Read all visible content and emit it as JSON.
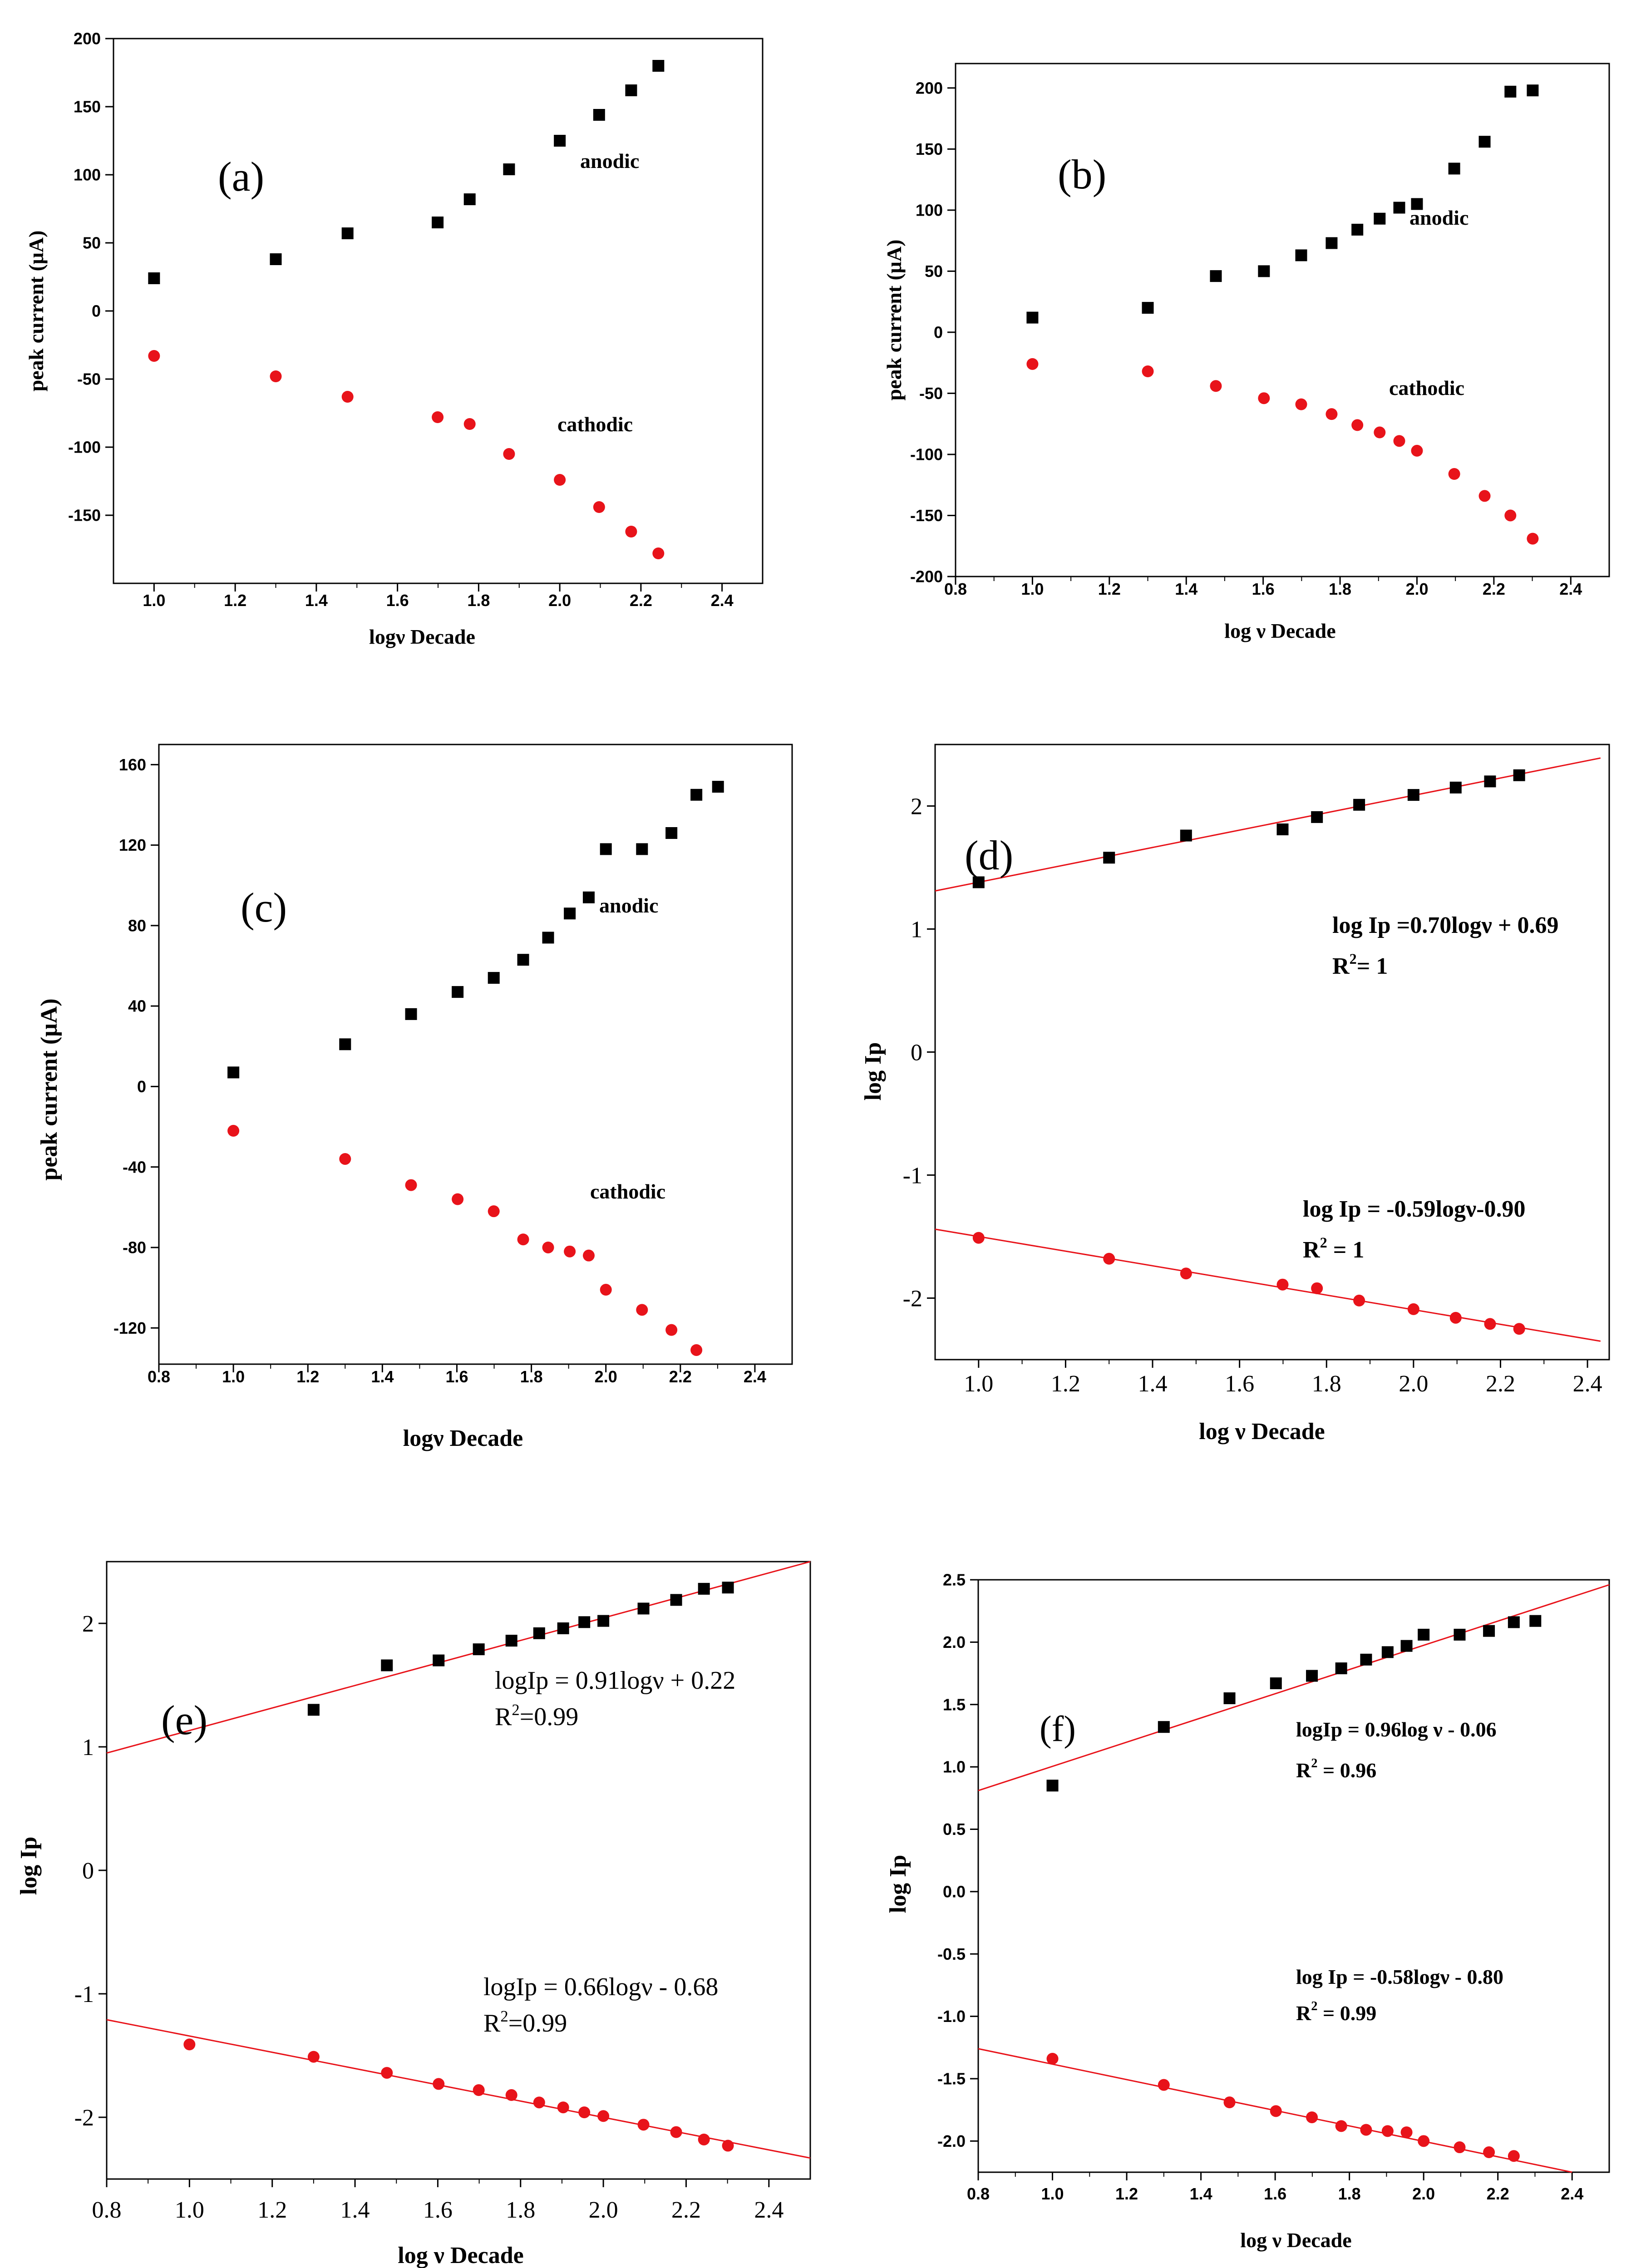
{
  "chart_data": [
    {
      "id": "a",
      "type": "scatter",
      "label": "(a)",
      "xlabel": "logν Decade",
      "ylabel": "peak current (μA)",
      "xlim": [
        0.9,
        2.5
      ],
      "ylim": [
        -200,
        200
      ],
      "xticks": [
        "1.0",
        "1.2",
        "1.4",
        "1.6",
        "1.8",
        "2.0",
        "2.2",
        "2.4"
      ],
      "yticks": [
        "200",
        "150",
        "100",
        "50",
        "0",
        "-50",
        "-100",
        "-150"
      ],
      "series": [
        {
          "name": "anodic",
          "label": "anodic",
          "color": "#000000",
          "marker": "square",
          "x": [
            1.0,
            1.3,
            1.477,
            1.699,
            1.778,
            1.875,
            2.0,
            2.097,
            2.176,
            2.243
          ],
          "y": [
            24,
            38,
            57,
            65,
            82,
            104,
            125,
            144,
            162,
            180
          ]
        },
        {
          "name": "cathodic",
          "label": "cathodic",
          "color": "#e8131a",
          "marker": "circle",
          "x": [
            1.0,
            1.3,
            1.477,
            1.699,
            1.778,
            1.875,
            2.0,
            2.097,
            2.176,
            2.243
          ],
          "y": [
            -33,
            -48,
            -63,
            -78,
            -83,
            -105,
            -124,
            -144,
            -162,
            -178
          ]
        }
      ]
    },
    {
      "id": "b",
      "type": "scatter",
      "label": "(b)",
      "xlabel": "log ν Decade",
      "ylabel": "peak current (μA)",
      "xlim": [
        0.8,
        2.5
      ],
      "ylim": [
        -200,
        220
      ],
      "xticks": [
        "0.8",
        "1.0",
        "1.2",
        "1.4",
        "1.6",
        "1.8",
        "2.0",
        "2.2",
        "2.4"
      ],
      "yticks": [
        "200",
        "150",
        "100",
        "50",
        "0",
        "-50",
        "-100",
        "-150",
        "-200"
      ],
      "series": [
        {
          "name": "anodic",
          "label": "anodic",
          "color": "#000000",
          "marker": "square",
          "x": [
            1.0,
            1.3,
            1.477,
            1.602,
            1.699,
            1.778,
            1.845,
            1.903,
            1.954,
            2.0,
            2.097,
            2.176,
            2.243,
            2.301
          ],
          "y": [
            12,
            20,
            46,
            50,
            63,
            73,
            84,
            93,
            102,
            105,
            134,
            156,
            197,
            198
          ]
        },
        {
          "name": "cathodic",
          "label": "cathodic",
          "color": "#e8131a",
          "marker": "circle",
          "x": [
            1.0,
            1.3,
            1.477,
            1.602,
            1.699,
            1.778,
            1.845,
            1.903,
            1.954,
            2.0,
            2.097,
            2.176,
            2.243,
            2.301
          ],
          "y": [
            -26,
            -32,
            -44,
            -54,
            -59,
            -67,
            -76,
            -82,
            -89,
            -97,
            -116,
            -134,
            -150,
            -169
          ]
        }
      ]
    },
    {
      "id": "c",
      "type": "scatter",
      "label": "(c)",
      "xlabel": "logν Decade",
      "ylabel": "peak current (μA)",
      "xlim": [
        0.8,
        2.5
      ],
      "ylim": [
        -138,
        170
      ],
      "xticks": [
        "0.8",
        "1.0",
        "1.2",
        "1.4",
        "1.6",
        "1.8",
        "2.0",
        "2.2",
        "2.4"
      ],
      "yticks": [
        "160",
        "120",
        "80",
        "40",
        "0",
        "-40",
        "-80",
        "-120"
      ],
      "series": [
        {
          "name": "anodic",
          "label": "anodic",
          "color": "#000000",
          "marker": "square",
          "x": [
            1.0,
            1.3,
            1.477,
            1.602,
            1.699,
            1.778,
            1.845,
            1.903,
            1.954,
            2.0,
            2.097,
            2.176,
            2.243,
            2.301
          ],
          "y": [
            7,
            21,
            36,
            47,
            54,
            63,
            74,
            86,
            94,
            118,
            118,
            126,
            145,
            149
          ]
        },
        {
          "name": "cathodic",
          "label": "cathodic",
          "color": "#e8131a",
          "marker": "circle",
          "x": [
            1.0,
            1.3,
            1.477,
            1.602,
            1.699,
            1.778,
            1.845,
            1.903,
            1.954,
            2.0,
            2.097,
            2.176,
            2.243
          ],
          "y": [
            -22,
            -36,
            -49,
            -56,
            -62,
            -76,
            -80,
            -82,
            -84,
            -101,
            -111,
            -121,
            -131
          ]
        }
      ]
    },
    {
      "id": "d",
      "type": "scatter",
      "label": "(d)",
      "xlabel": "log ν Decade",
      "ylabel": "log Ip",
      "xlim": [
        0.9,
        2.45
      ],
      "ylim": [
        -2.5,
        2.5
      ],
      "xticks": [
        "1.0",
        "1.2",
        "1.4",
        "1.6",
        "1.8",
        "2.0",
        "2.2",
        "2.4"
      ],
      "yticks": [
        "2",
        "1",
        "0",
        "-1",
        "-2"
      ],
      "eq1": "log Ip =0.70logν + 0.69",
      "r2_1": "R²= 1",
      "eq2": "log Ip = -0.59logν-0.90",
      "r2_2": "R² = 1",
      "series": [
        {
          "name": "anodic",
          "color": "#000000",
          "marker": "square",
          "x": [
            1.0,
            1.3,
            1.477,
            1.699,
            1.778,
            1.875,
            2.0,
            2.097,
            2.176,
            2.243
          ],
          "y": [
            1.38,
            1.58,
            1.76,
            1.81,
            1.91,
            2.01,
            2.09,
            2.15,
            2.2,
            2.25
          ]
        },
        {
          "name": "cathodic",
          "color": "#e8131a",
          "marker": "circle",
          "x": [
            1.0,
            1.3,
            1.477,
            1.699,
            1.778,
            1.875,
            2.0,
            2.097,
            2.176,
            2.243
          ],
          "y": [
            -1.51,
            -1.68,
            -1.8,
            -1.89,
            -1.92,
            -2.02,
            -2.09,
            -2.16,
            -2.21,
            -2.25
          ]
        }
      ],
      "fits": [
        {
          "color": "#e8131a",
          "x": [
            0.9,
            2.43
          ],
          "y": [
            1.31,
            2.39
          ]
        },
        {
          "color": "#e8131a",
          "x": [
            0.9,
            2.43
          ],
          "y": [
            -1.44,
            -2.35
          ]
        }
      ]
    },
    {
      "id": "e",
      "type": "scatter",
      "label": "(e)",
      "xlabel": "log ν Decade",
      "ylabel": "log Ip",
      "xlim": [
        0.8,
        2.5
      ],
      "ylim": [
        -2.5,
        2.5
      ],
      "xticks": [
        "0.8",
        "1.0",
        "1.2",
        "1.4",
        "1.6",
        "1.8",
        "2.0",
        "2.2",
        "2.4"
      ],
      "yticks": [
        "2",
        "1",
        "0",
        "-1",
        "-2"
      ],
      "eq1": "logIp = 0.91logν + 0.22",
      "r2_1": "R²=0.99",
      "eq2": "logIp = 0.66logν - 0.68",
      "r2_2": "R²=0.99",
      "series": [
        {
          "name": "anodic",
          "color": "#000000",
          "marker": "square",
          "x": [
            1.3,
            1.477,
            1.602,
            1.699,
            1.778,
            1.845,
            1.903,
            1.954,
            2.0,
            2.097,
            2.176,
            2.243,
            2.301
          ],
          "y": [
            1.3,
            1.66,
            1.7,
            1.79,
            1.86,
            1.92,
            1.96,
            2.01,
            2.02,
            2.12,
            2.19,
            2.28,
            2.29
          ]
        },
        {
          "name": "cathodic",
          "color": "#e8131a",
          "marker": "circle",
          "x": [
            1.0,
            1.3,
            1.477,
            1.602,
            1.699,
            1.778,
            1.845,
            1.903,
            1.954,
            2.0,
            2.097,
            2.176,
            2.243,
            2.301
          ],
          "y": [
            -1.41,
            -1.51,
            -1.64,
            -1.73,
            -1.78,
            -1.82,
            -1.88,
            -1.92,
            -1.96,
            -1.99,
            -2.06,
            -2.12,
            -2.18,
            -2.23
          ]
        }
      ],
      "fits": [
        {
          "color": "#e8131a",
          "x": [
            0.8,
            2.5
          ],
          "y": [
            0.95,
            2.5
          ]
        },
        {
          "color": "#e8131a",
          "x": [
            0.8,
            2.5
          ],
          "y": [
            -1.21,
            -2.33
          ]
        }
      ]
    },
    {
      "id": "f",
      "type": "scatter",
      "label": "(f)",
      "xlabel": "log ν Decade",
      "ylabel": "log Ip",
      "xlim": [
        0.8,
        2.5
      ],
      "ylim": [
        -2.25,
        2.5
      ],
      "xticks": [
        "0.8",
        "1.0",
        "1.2",
        "1.4",
        "1.6",
        "1.8",
        "2.0",
        "2.2",
        "2.4"
      ],
      "yticks": [
        "2.5",
        "2.0",
        "1.5",
        "1.0",
        "0.5",
        "0.0",
        "-0.5",
        "-1.0",
        "-1.5",
        "-2.0"
      ],
      "eq1": "logIp = 0.96log ν - 0.06",
      "r2_1": "R² = 0.96",
      "eq2": "log Ip = -0.58logν - 0.80",
      "r2_2": "R² = 0.99",
      "series": [
        {
          "name": "anodic",
          "color": "#000000",
          "marker": "square",
          "x": [
            1.0,
            1.3,
            1.477,
            1.602,
            1.699,
            1.778,
            1.845,
            1.903,
            1.954,
            2.0,
            2.097,
            2.176,
            2.243,
            2.301
          ],
          "y": [
            0.85,
            1.32,
            1.55,
            1.67,
            1.73,
            1.79,
            1.86,
            1.92,
            1.97,
            2.06,
            2.06,
            2.09,
            2.16,
            2.17
          ]
        },
        {
          "name": "cathodic",
          "color": "#e8131a",
          "marker": "circle",
          "x": [
            1.0,
            1.3,
            1.477,
            1.602,
            1.699,
            1.778,
            1.845,
            1.903,
            1.954,
            2.0,
            2.097,
            2.176,
            2.243
          ],
          "y": [
            -1.34,
            -1.55,
            -1.69,
            -1.76,
            -1.81,
            -1.88,
            -1.91,
            -1.92,
            -1.93,
            -2.0,
            -2.05,
            -2.09,
            -2.12
          ]
        }
      ],
      "fits": [
        {
          "color": "#e8131a",
          "x": [
            0.8,
            2.5
          ],
          "y": [
            0.81,
            2.46
          ]
        },
        {
          "color": "#e8131a",
          "x": [
            0.8,
            2.4
          ],
          "y": [
            -1.26,
            -2.25
          ]
        }
      ]
    }
  ]
}
